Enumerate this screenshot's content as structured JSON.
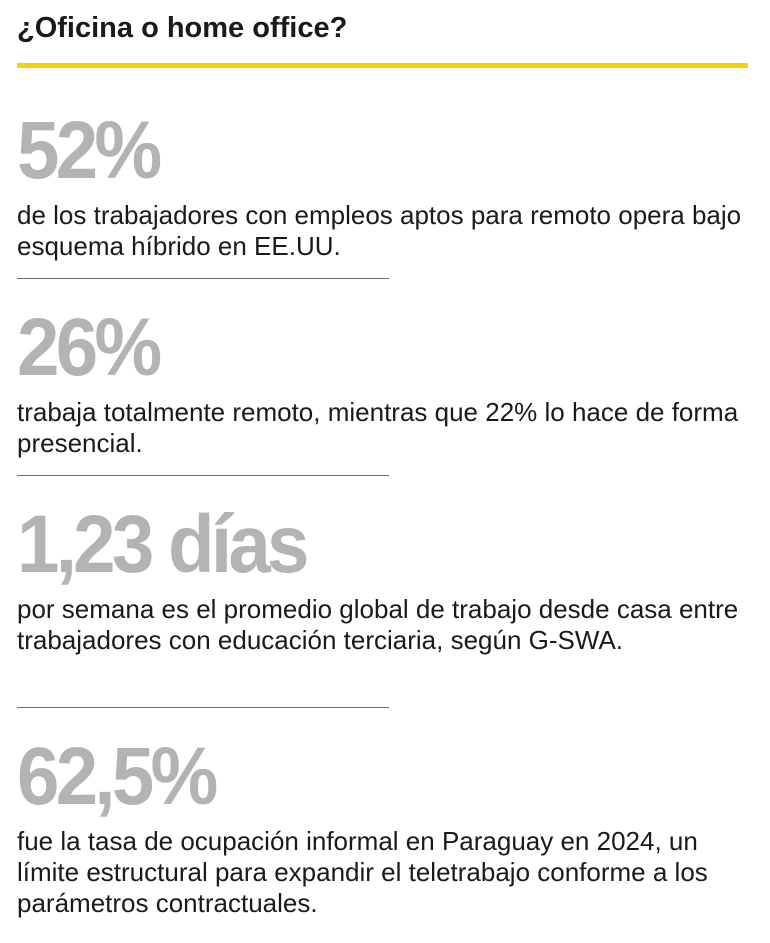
{
  "header": {
    "title": "¿Oficina o home office?",
    "accent_color": "#f2d200"
  },
  "stats": [
    {
      "value": "52%",
      "text": "de los trabajadores con empleos aptos para remoto opera bajo esquema híbrido en EE.UU."
    },
    {
      "value": "26%",
      "text": "trabaja totalmente remoto, mientras que 22% lo hace de forma presencial."
    },
    {
      "value": "1,23 días",
      "text": "por semana es el promedio global de trabajo desde casa entre trabajadores con educación terciaria, según G-SWA."
    },
    {
      "value": "62,5%",
      "text": "fue la tasa de ocupación informal en Paraguay en 2024, un límite estructural para expandir el teletrabajo conforme a los parámetros contractuales."
    }
  ],
  "colors": {
    "stat_value": "#b3b3b3",
    "body_text": "#1a1a1a",
    "divider": "#6a6a6a"
  }
}
